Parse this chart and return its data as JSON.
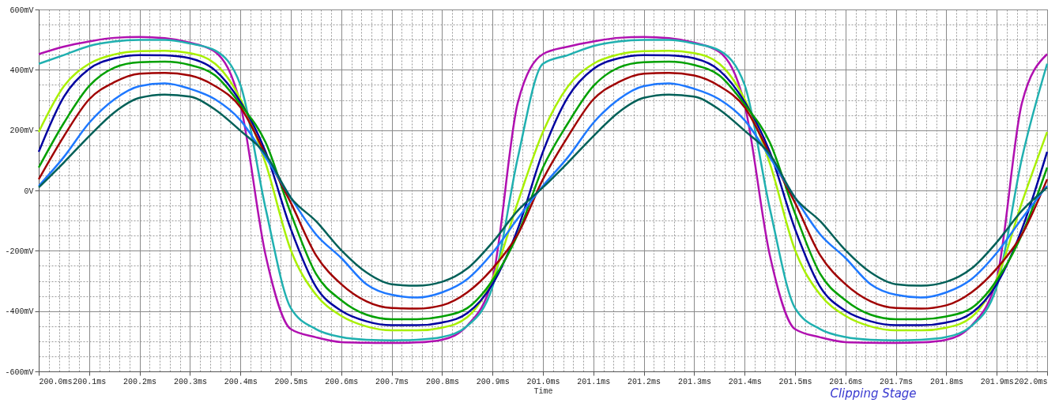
{
  "chart_data": {
    "type": "line",
    "xlabel": "Time",
    "annotations": [
      "Clipping Stage"
    ],
    "grid": true,
    "line_style": "solid",
    "xlim": [
      200,
      202
    ],
    "ylim": [
      -600,
      600
    ],
    "xticks": [
      {
        "value": 200.0,
        "label": "200.0ms"
      },
      {
        "value": 200.1,
        "label": "200.1ms"
      },
      {
        "value": 200.2,
        "label": "200.2ms"
      },
      {
        "value": 200.3,
        "label": "200.3ms"
      },
      {
        "value": 200.4,
        "label": "200.4ms"
      },
      {
        "value": 200.5,
        "label": "200.5ms"
      },
      {
        "value": 200.6,
        "label": "200.6ms"
      },
      {
        "value": 200.7,
        "label": "200.7ms"
      },
      {
        "value": 200.8,
        "label": "200.8ms"
      },
      {
        "value": 200.9,
        "label": "200.9ms"
      },
      {
        "value": 201.0,
        "label": "201.0ms"
      },
      {
        "value": 201.1,
        "label": "201.1ms"
      },
      {
        "value": 201.2,
        "label": "201.2ms"
      },
      {
        "value": 201.3,
        "label": "201.3ms"
      },
      {
        "value": 201.4,
        "label": "201.4ms"
      },
      {
        "value": 201.5,
        "label": "201.5ms"
      },
      {
        "value": 201.6,
        "label": "201.6ms"
      },
      {
        "value": 201.7,
        "label": "201.7ms"
      },
      {
        "value": 201.8,
        "label": "201.8ms"
      },
      {
        "value": 201.9,
        "label": "201.9ms"
      },
      {
        "value": 202.0,
        "label": "202.0ms"
      }
    ],
    "yticks": [
      {
        "value": -600,
        "label": "-600mV"
      },
      {
        "value": -400,
        "label": "-400mV"
      },
      {
        "value": -200,
        "label": "-200mV"
      },
      {
        "value": 0,
        "label": "0V"
      },
      {
        "value": 200,
        "label": "200mV"
      },
      {
        "value": 400,
        "label": "400mV"
      },
      {
        "value": 600,
        "label": "600mV"
      }
    ],
    "x": [
      200,
      200.05,
      200.1,
      200.15,
      200.2,
      200.25,
      200.3,
      200.35,
      200.4,
      200.45,
      200.5,
      200.55,
      200.6,
      200.65,
      200.7,
      200.75,
      200.8,
      200.85,
      200.9,
      200.95,
      201,
      201.05,
      201.1,
      201.15,
      201.2,
      201.25,
      201.3,
      201.35,
      201.4,
      201.45,
      201.5,
      201.55,
      201.6,
      201.65,
      201.7,
      201.75,
      201.8,
      201.85,
      201.9,
      201.95,
      202
    ],
    "series": [
      {
        "color": "#b010b0",
        "values": [
          452,
          477,
          494,
          506,
          509,
          505,
          490,
          459,
          285,
          -215,
          -460,
          -487,
          -503,
          -505,
          -506,
          -504,
          -495,
          -448,
          -293,
          290,
          452,
          477,
          494,
          506,
          509,
          505,
          490,
          459,
          285,
          -215,
          -460,
          -487,
          -503,
          -505,
          -506,
          -504,
          -495,
          -448,
          -293,
          290,
          452
        ]
      },
      {
        "color": "#20b0b0",
        "values": [
          420,
          449,
          479,
          494,
          499,
          499,
          487,
          464,
          350,
          -60,
          -390,
          -460,
          -486,
          -495,
          -497,
          -495,
          -486,
          -449,
          -320,
          107,
          420,
          449,
          479,
          494,
          499,
          499,
          487,
          464,
          350,
          -60,
          -390,
          -460,
          -486,
          -495,
          -497,
          -495,
          -486,
          -449,
          -320,
          107,
          420
        ]
      },
      {
        "color": "#a8f000",
        "values": [
          194,
          346,
          420,
          451,
          462,
          463,
          455,
          420,
          303,
          90,
          -198,
          -346,
          -416,
          -451,
          -464,
          -464,
          -455,
          -420,
          -294,
          -40,
          194,
          346,
          420,
          451,
          462,
          463,
          455,
          420,
          303,
          90,
          -198,
          -346,
          -416,
          -451,
          -464,
          -464,
          -455,
          -420,
          -294,
          -40,
          194
        ]
      },
      {
        "color": "#0000a0",
        "values": [
          128,
          311,
          403,
          438,
          449,
          448,
          438,
          398,
          294,
          128,
          -128,
          -320,
          -399,
          -434,
          -447,
          -447,
          -438,
          -407,
          -311,
          -128,
          128,
          311,
          403,
          438,
          449,
          448,
          438,
          398,
          294,
          128,
          -128,
          -320,
          -399,
          -434,
          -447,
          -447,
          -438,
          -407,
          -311,
          -128,
          128
        ]
      },
      {
        "color": "#00a000",
        "values": [
          76,
          224,
          346,
          407,
          425,
          427,
          416,
          381,
          285,
          159,
          -76,
          -277,
          -364,
          -412,
          -427,
          -427,
          -418,
          -390,
          -298,
          -146,
          76,
          224,
          346,
          407,
          425,
          427,
          416,
          381,
          285,
          159,
          -76,
          -277,
          -364,
          -412,
          -427,
          -427,
          -418,
          -390,
          -298,
          -146,
          76
        ]
      },
      {
        "color": "#a00000",
        "values": [
          37,
          180,
          302,
          359,
          387,
          390,
          381,
          346,
          276,
          120,
          -41,
          -215,
          -311,
          -368,
          -390,
          -392,
          -381,
          -338,
          -259,
          -146,
          37,
          180,
          302,
          359,
          387,
          390,
          381,
          346,
          276,
          120,
          -41,
          -215,
          -311,
          -368,
          -390,
          -392,
          -381,
          -338,
          -259,
          -146,
          37
        ]
      },
      {
        "color": "#1e78ff",
        "values": [
          15,
          111,
          224,
          302,
          346,
          355,
          337,
          302,
          233,
          110,
          -24,
          -146,
          -224,
          -311,
          -346,
          -355,
          -338,
          -294,
          -207,
          -93,
          15,
          111,
          224,
          302,
          346,
          355,
          337,
          302,
          233,
          110,
          -24,
          -146,
          -224,
          -311,
          -346,
          -355,
          -338,
          -294,
          -207,
          -93,
          15
        ]
      },
      {
        "color": "#006058",
        "values": [
          10,
          93,
          180,
          259,
          307,
          318,
          311,
          268,
          198,
          120,
          -24,
          -102,
          -198,
          -272,
          -311,
          -316,
          -303,
          -259,
          -172,
          -67,
          10,
          93,
          180,
          259,
          307,
          318,
          311,
          268,
          198,
          120,
          -24,
          -102,
          -198,
          -272,
          -311,
          -316,
          -303,
          -259,
          -172,
          -67,
          10
        ]
      }
    ]
  }
}
